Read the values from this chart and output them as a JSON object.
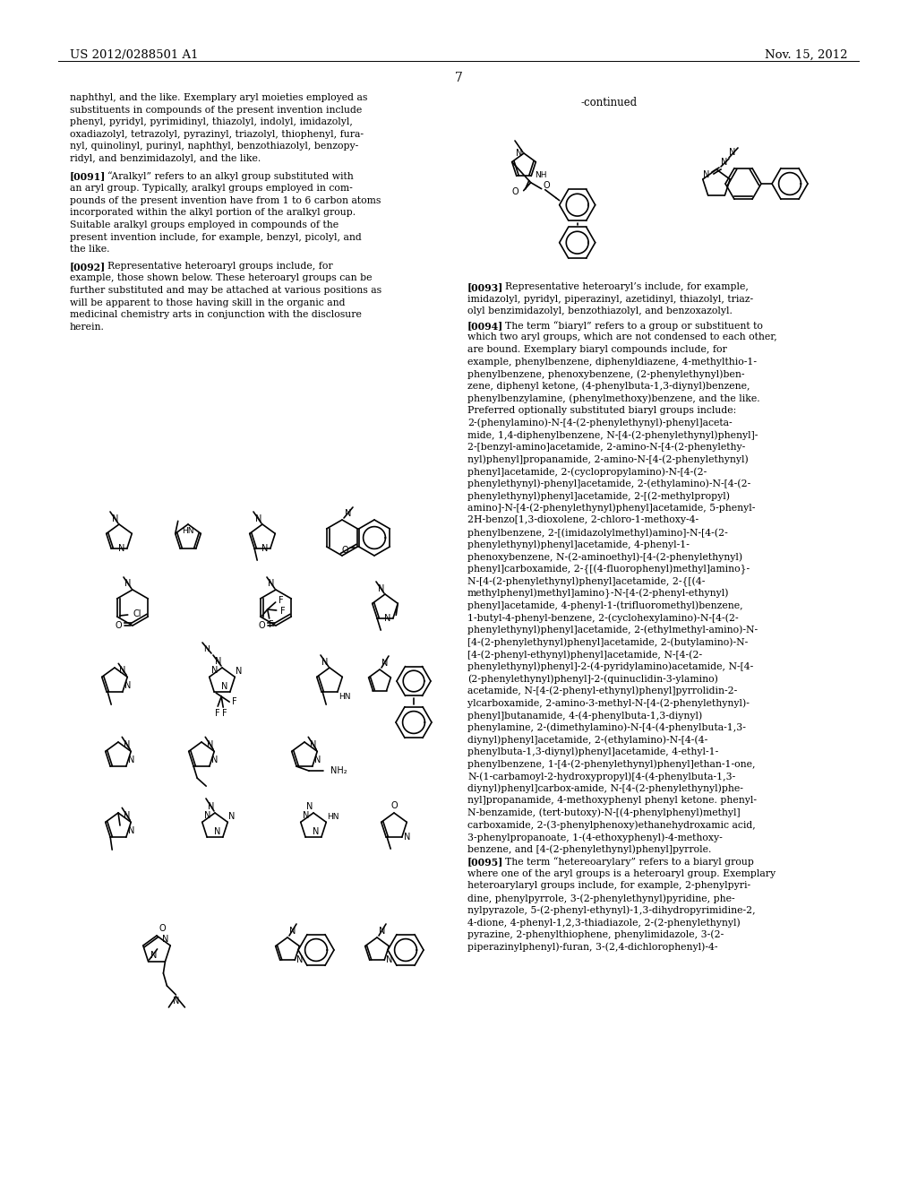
{
  "header_left": "US 2012/0288501 A1",
  "header_right": "Nov. 15, 2012",
  "page_number": "7",
  "bg_color": "#ffffff",
  "text_color": "#000000",
  "font_size_body": 7.8,
  "font_size_header": 9.5
}
